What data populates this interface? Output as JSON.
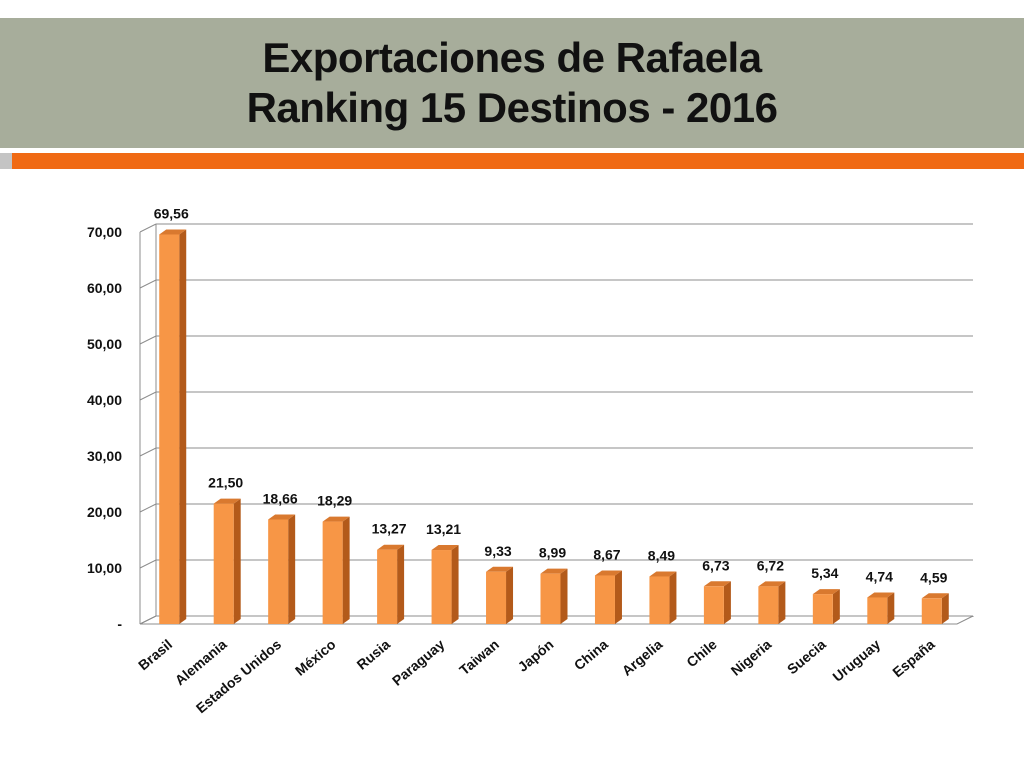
{
  "title": {
    "line1": "Exportaciones de Rafaela",
    "line2": "Ranking 15 Destinos - 2016"
  },
  "colors": {
    "title_band": "#a7ad9b",
    "accent": "#f06a14",
    "bar_front": "#f79646",
    "bar_side": "#b35a1a",
    "bar_top": "#d9792f"
  },
  "chart_data": {
    "type": "bar",
    "title": "",
    "xlabel": "",
    "ylabel": "",
    "ylim": [
      0,
      70
    ],
    "grid": true,
    "y_ticks": [
      {
        "value": 0,
        "label": "-"
      },
      {
        "value": 10,
        "label": "10,00"
      },
      {
        "value": 20,
        "label": "20,00"
      },
      {
        "value": 30,
        "label": "30,00"
      },
      {
        "value": 40,
        "label": "40,00"
      },
      {
        "value": 50,
        "label": "50,00"
      },
      {
        "value": 60,
        "label": "60,00"
      },
      {
        "value": 70,
        "label": "70,00"
      }
    ],
    "categories": [
      "Brasil",
      "Alemania",
      "Estados Unidos",
      "México",
      "Rusia",
      "Paraguay",
      "Taiwan",
      "Japón",
      "China",
      "Argelia",
      "Chile",
      "Nigeria",
      "Suecia",
      "Uruguay",
      "España"
    ],
    "values": [
      69.56,
      21.5,
      18.66,
      18.29,
      13.27,
      13.21,
      9.33,
      8.99,
      8.67,
      8.49,
      6.73,
      6.72,
      5.34,
      4.74,
      4.59
    ],
    "value_labels": [
      "69,56",
      "21,50",
      "18,66",
      "18,29",
      "13,27",
      "13,21",
      "9,33",
      "8,99",
      "8,67",
      "8,49",
      "6,73",
      "6,72",
      "5,34",
      "4,74",
      "4,59"
    ]
  }
}
